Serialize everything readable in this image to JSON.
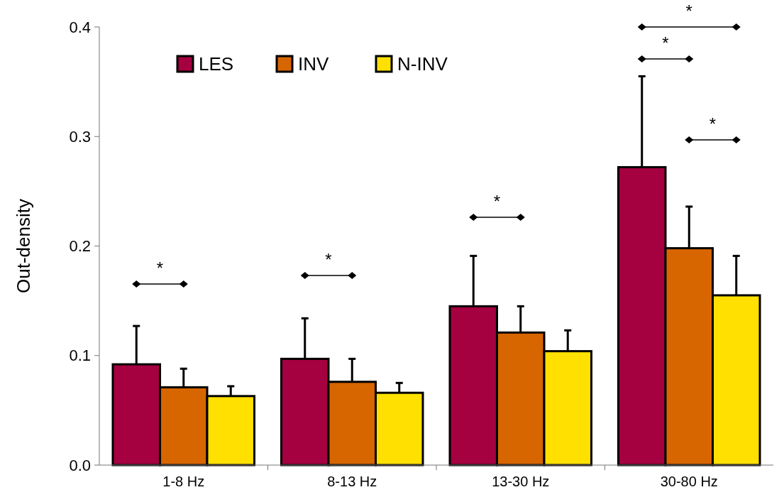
{
  "chart_data": {
    "type": "bar",
    "ylabel": "Out-density",
    "categories": [
      "1-8 Hz",
      "8-13 Hz",
      "13-30 Hz",
      "30-80 Hz"
    ],
    "series": [
      {
        "name": "LES",
        "color": "#a50040",
        "values": [
          0.092,
          0.097,
          0.145,
          0.272
        ],
        "errors": [
          0.035,
          0.037,
          0.046,
          0.083
        ]
      },
      {
        "name": "INV",
        "color": "#d76600",
        "values": [
          0.071,
          0.076,
          0.121,
          0.198
        ],
        "errors": [
          0.017,
          0.021,
          0.024,
          0.038
        ]
      },
      {
        "name": "N-INV",
        "color": "#ffe000",
        "values": [
          0.063,
          0.066,
          0.104,
          0.155
        ],
        "errors": [
          0.009,
          0.009,
          0.019,
          0.036
        ]
      }
    ],
    "ylim": [
      0,
      0.4
    ],
    "yticks": [
      {
        "value": 0,
        "label": "0.0"
      },
      0.1,
      0.2,
      0.3,
      0.4
    ],
    "grid": false,
    "legend": "top left",
    "annotations": [
      "*",
      "*",
      "*",
      "*",
      "*",
      "*"
    ]
  }
}
